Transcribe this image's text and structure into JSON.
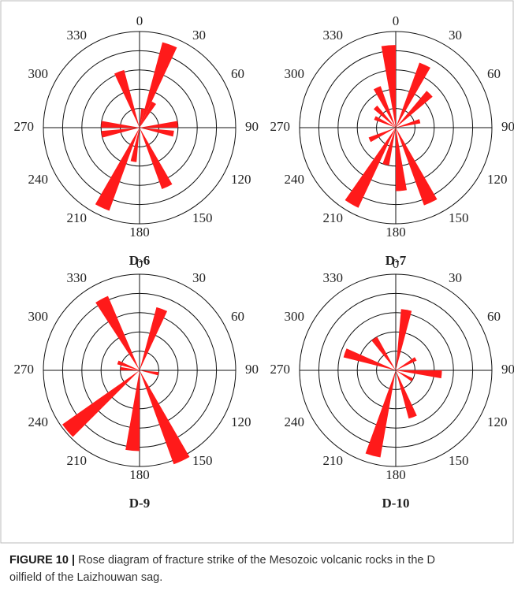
{
  "chart_data": [
    {
      "type": "rose",
      "title": "D-6",
      "color": "#ff1a1a",
      "rlim": [
        0,
        5
      ],
      "rticks": [
        1,
        2,
        3,
        4,
        5
      ],
      "angle_ticks": [
        0,
        30,
        60,
        90,
        120,
        150,
        180,
        210,
        240,
        270,
        300,
        330
      ],
      "x": [
        10,
        20,
        30,
        85,
        100,
        155,
        190,
        205,
        260,
        275,
        340
      ],
      "values": [
        1.0,
        4.6,
        1.5,
        2.0,
        1.8,
        3.4,
        1.8,
        4.6,
        2.0,
        2.0,
        3.1
      ]
    },
    {
      "type": "rose",
      "title": "D-7",
      "color": "#ff1a1a",
      "rlim": [
        0,
        5
      ],
      "rticks": [
        1,
        2,
        3,
        4,
        5
      ],
      "angle_ticks": [
        0,
        30,
        60,
        90,
        120,
        150,
        180,
        210,
        240,
        270,
        300,
        330
      ],
      "x": [
        25,
        45,
        75,
        155,
        175,
        195,
        210,
        245,
        295,
        315,
        335,
        355
      ],
      "values": [
        3.6,
        2.5,
        1.3,
        4.3,
        3.3,
        2.0,
        4.6,
        1.5,
        1.2,
        1.5,
        2.3,
        4.3
      ]
    },
    {
      "type": "rose",
      "title": "D-9",
      "color": "#ff1a1a",
      "rlim": [
        0,
        5
      ],
      "rticks": [
        1,
        2,
        3,
        4,
        5
      ],
      "angle_ticks": [
        0,
        30,
        60,
        90,
        120,
        150,
        180,
        210,
        240,
        270,
        300,
        330
      ],
      "x": [
        20,
        100,
        155,
        185,
        230,
        275,
        290,
        332
      ],
      "values": [
        3.4,
        1.0,
        5.2,
        4.2,
        4.9,
        1.0,
        1.2,
        4.2
      ]
    },
    {
      "type": "rose",
      "title": "D-10",
      "color": "#ff1a1a",
      "rlim": [
        0,
        5
      ],
      "rticks": [
        1,
        2,
        3,
        4,
        5
      ],
      "angle_ticks": [
        0,
        30,
        60,
        90,
        120,
        150,
        180,
        210,
        240,
        270,
        300,
        330
      ],
      "x": [
        10,
        60,
        95,
        120,
        160,
        195,
        289,
        326
      ],
      "values": [
        3.2,
        1.2,
        2.4,
        1.0,
        2.6,
        4.6,
        2.8,
        2.0
      ]
    }
  ],
  "caption": {
    "label": "FIGURE 10 |",
    "text": "Rose diagram of fracture strike of the Mesozoic volcanic rocks in the D oilfield of the Laizhouwan sag."
  }
}
